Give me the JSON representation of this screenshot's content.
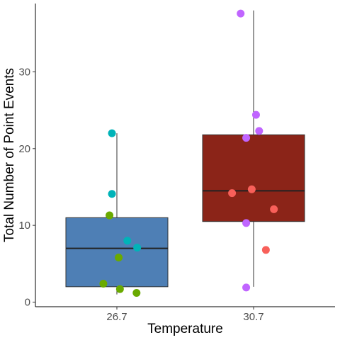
{
  "chart_data": {
    "type": "boxplot",
    "title": "",
    "xlabel": "Temperature",
    "ylabel": "Total Number of Point Events",
    "ylim": [
      -0.6,
      38.9
    ],
    "y_ticks": [
      0,
      10,
      20,
      30
    ],
    "grid": false,
    "legend": "none",
    "categories": [
      "26.7",
      "30.7"
    ],
    "boxes": [
      {
        "category": "26.7",
        "fill": "#4E7FB5",
        "whisker_low": 1.0,
        "q1": 2.0,
        "median": 7.0,
        "q3": 11.0,
        "whisker_high": 22.0
      },
      {
        "category": "30.7",
        "fill": "#8B2418",
        "whisker_low": 2.0,
        "q1": 10.5,
        "median": 14.5,
        "q3": 21.8,
        "whisker_high": 38.0
      }
    ],
    "points": [
      {
        "category": "26.7",
        "jitter": -0.08,
        "y": 22.0,
        "color": "#00B3B8"
      },
      {
        "category": "26.7",
        "jitter": -0.08,
        "y": 14.1,
        "color": "#00B3B8"
      },
      {
        "category": "26.7",
        "jitter": -0.12,
        "y": 11.3,
        "color": "#6AAA00"
      },
      {
        "category": "26.7",
        "jitter": 0.17,
        "y": 8.0,
        "color": "#00B3B8"
      },
      {
        "category": "26.7",
        "jitter": 0.33,
        "y": 7.1,
        "color": "#00B3B8"
      },
      {
        "category": "26.7",
        "jitter": 0.03,
        "y": 5.8,
        "color": "#6AAA00"
      },
      {
        "category": "26.7",
        "jitter": -0.22,
        "y": 2.4,
        "color": "#6AAA00"
      },
      {
        "category": "26.7",
        "jitter": 0.05,
        "y": 1.7,
        "color": "#6AAA00"
      },
      {
        "category": "26.7",
        "jitter": 0.32,
        "y": 1.2,
        "color": "#6AAA00"
      },
      {
        "category": "30.7",
        "jitter": -0.21,
        "y": 37.6,
        "color": "#C065FF"
      },
      {
        "category": "30.7",
        "jitter": 0.04,
        "y": 24.4,
        "color": "#C065FF"
      },
      {
        "category": "30.7",
        "jitter": 0.09,
        "y": 22.3,
        "color": "#C065FF"
      },
      {
        "category": "30.7",
        "jitter": -0.12,
        "y": 21.4,
        "color": "#C065FF"
      },
      {
        "category": "30.7",
        "jitter": -0.03,
        "y": 14.7,
        "color": "#F8605A"
      },
      {
        "category": "30.7",
        "jitter": -0.35,
        "y": 14.2,
        "color": "#F8605A"
      },
      {
        "category": "30.7",
        "jitter": 0.33,
        "y": 12.1,
        "color": "#F8605A"
      },
      {
        "category": "30.7",
        "jitter": -0.12,
        "y": 10.3,
        "color": "#C065FF"
      },
      {
        "category": "30.7",
        "jitter": 0.2,
        "y": 6.8,
        "color": "#F8605A"
      },
      {
        "category": "30.7",
        "jitter": -0.12,
        "y": 1.9,
        "color": "#C065FF"
      }
    ]
  }
}
